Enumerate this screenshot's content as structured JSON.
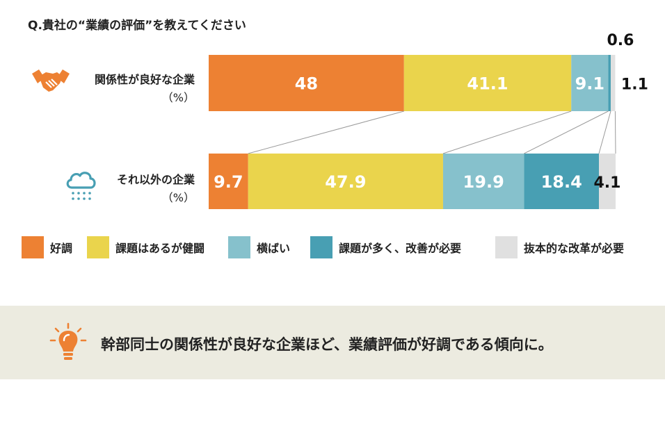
{
  "question": "Q.貴社の“業績の評価”を教えてください",
  "rows": [
    {
      "label": "関係性が良好な企業",
      "unit": "（%）",
      "icon": "handshake-icon"
    },
    {
      "label": "それ以外の企業",
      "unit": "（%）",
      "icon": "rain-cloud-icon"
    }
  ],
  "legend": [
    {
      "label": "好調",
      "color": "#ed8133"
    },
    {
      "label": "課題はあるが健闘",
      "color": "#ead44c"
    },
    {
      "label": "横ばい",
      "color": "#86c1cc"
    },
    {
      "label": "課題が多く、改善が必要",
      "color": "#489fb3"
    },
    {
      "label": "抜本的な改革が必要",
      "color": "#e0e0e0"
    }
  ],
  "chart_data": {
    "type": "bar",
    "orientation": "horizontal-stacked-100",
    "categories": [
      "関係性が良好な企業",
      "それ以外の企業"
    ],
    "series": [
      {
        "name": "好調",
        "values": [
          48,
          9.7
        ]
      },
      {
        "name": "課題はあるが健闘",
        "values": [
          41.1,
          47.9
        ]
      },
      {
        "name": "横ばい",
        "values": [
          9.1,
          19.9
        ]
      },
      {
        "name": "課題が多く、改善が必要",
        "values": [
          0.6,
          18.4
        ]
      },
      {
        "name": "抜本的な改革が必要",
        "values": [
          1.1,
          4.1
        ]
      }
    ],
    "xlim": [
      0,
      100
    ],
    "unit": "%",
    "legend_position": "bottom",
    "grid": false
  },
  "conclusion": "幹部同士の関係性が良好な企業ほど、業績評価が好調である傾向に。"
}
